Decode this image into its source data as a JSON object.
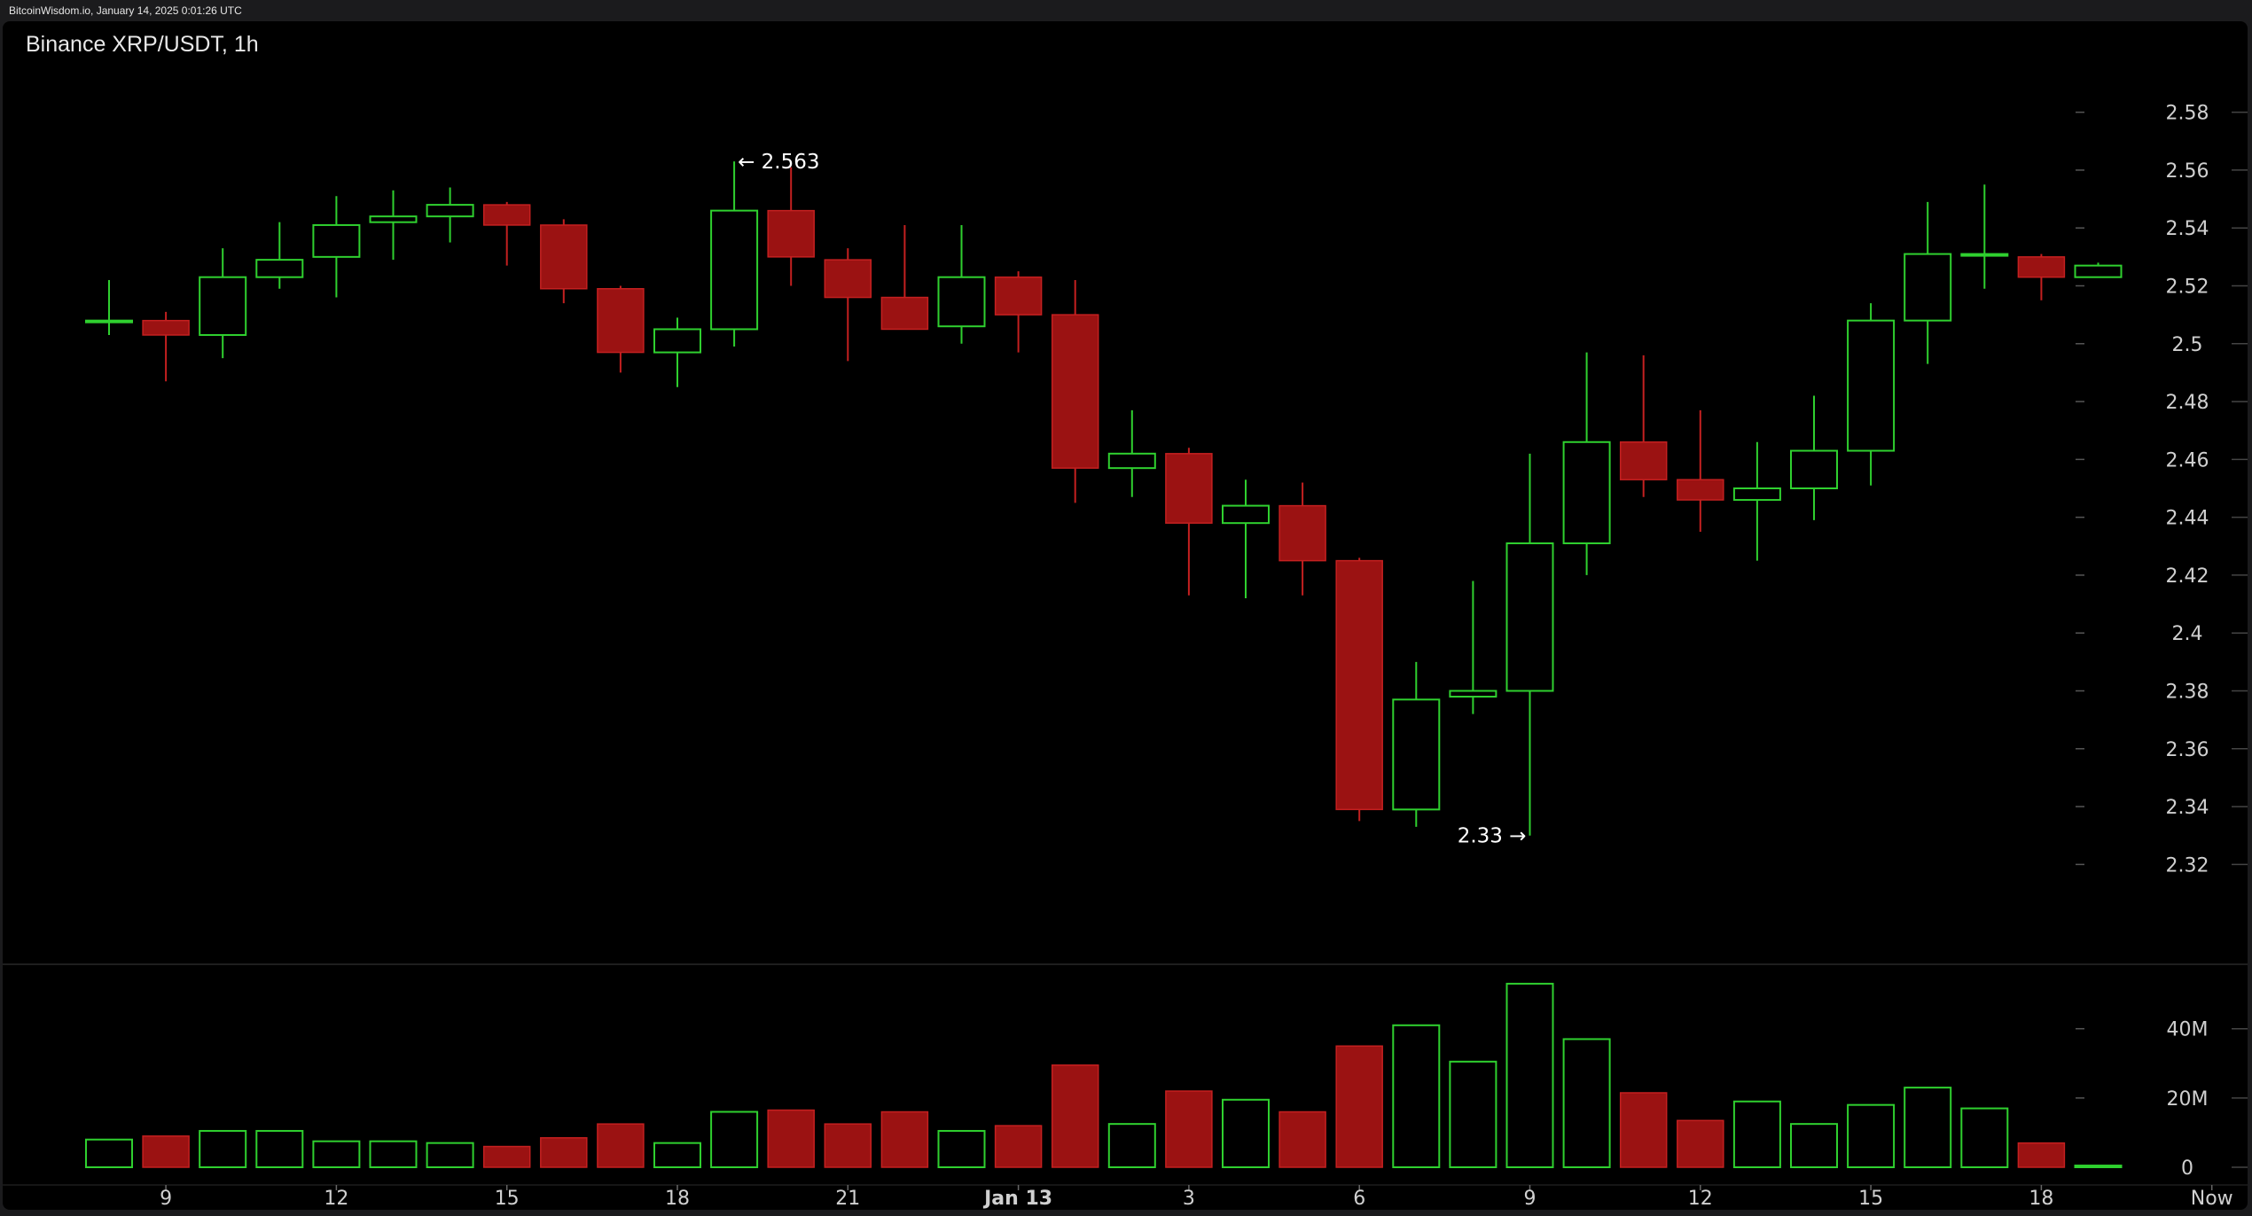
{
  "watermark": "BitcoinWisdom.io, January 14, 2025 0:01:26 UTC",
  "chart_title": "Binance XRP/USDT, 1h",
  "chart_data": [
    {
      "type": "candlestick",
      "title": "Binance XRP/USDT, 1h",
      "exchange": "Binance",
      "pair": "XRP/USDT",
      "interval": "1h",
      "ylim": [
        2.31,
        2.59
      ],
      "y_ticks": [
        2.58,
        2.56,
        2.54,
        2.52,
        2.5,
        2.48,
        2.46,
        2.44,
        2.42,
        2.4,
        2.38,
        2.36,
        2.34,
        2.32
      ],
      "y_tick_labels": [
        "2.58",
        "2.56",
        "2.54",
        "2.52",
        "2.5",
        "2.48",
        "2.46",
        "2.44",
        "2.42",
        "2.4",
        "2.38",
        "2.36",
        "2.34",
        "2.32"
      ],
      "x_ticks": [
        {
          "index": 1,
          "label": "9"
        },
        {
          "index": 4,
          "label": "12"
        },
        {
          "index": 7,
          "label": "15"
        },
        {
          "index": 10,
          "label": "18"
        },
        {
          "index": 13,
          "label": "21"
        },
        {
          "index": 16,
          "label": "Jan 13"
        },
        {
          "index": 19,
          "label": "3"
        },
        {
          "index": 22,
          "label": "6"
        },
        {
          "index": 25,
          "label": "9"
        },
        {
          "index": 28,
          "label": "12"
        },
        {
          "index": 31,
          "label": "15"
        },
        {
          "index": 34,
          "label": "18"
        },
        {
          "index": 37,
          "label": "Now"
        }
      ],
      "candles": [
        {
          "o": 2.508,
          "h": 2.522,
          "l": 2.503,
          "c": 2.508
        },
        {
          "o": 2.508,
          "h": 2.511,
          "l": 2.487,
          "c": 2.503
        },
        {
          "o": 2.503,
          "h": 2.533,
          "l": 2.495,
          "c": 2.523
        },
        {
          "o": 2.523,
          "h": 2.542,
          "l": 2.519,
          "c": 2.529
        },
        {
          "o": 2.53,
          "h": 2.551,
          "l": 2.516,
          "c": 2.541
        },
        {
          "o": 2.542,
          "h": 2.553,
          "l": 2.529,
          "c": 2.544
        },
        {
          "o": 2.544,
          "h": 2.554,
          "l": 2.535,
          "c": 2.548
        },
        {
          "o": 2.548,
          "h": 2.549,
          "l": 2.527,
          "c": 2.541
        },
        {
          "o": 2.541,
          "h": 2.543,
          "l": 2.514,
          "c": 2.519
        },
        {
          "o": 2.519,
          "h": 2.52,
          "l": 2.49,
          "c": 2.497
        },
        {
          "o": 2.497,
          "h": 2.509,
          "l": 2.485,
          "c": 2.505
        },
        {
          "o": 2.505,
          "h": 2.563,
          "l": 2.499,
          "c": 2.546
        },
        {
          "o": 2.546,
          "h": 2.561,
          "l": 2.52,
          "c": 2.53
        },
        {
          "o": 2.529,
          "h": 2.533,
          "l": 2.494,
          "c": 2.516
        },
        {
          "o": 2.516,
          "h": 2.541,
          "l": 2.506,
          "c": 2.505
        },
        {
          "o": 2.506,
          "h": 2.541,
          "l": 2.5,
          "c": 2.523
        },
        {
          "o": 2.523,
          "h": 2.525,
          "l": 2.497,
          "c": 2.51
        },
        {
          "o": 2.51,
          "h": 2.522,
          "l": 2.445,
          "c": 2.457
        },
        {
          "o": 2.457,
          "h": 2.477,
          "l": 2.447,
          "c": 2.462
        },
        {
          "o": 2.462,
          "h": 2.464,
          "l": 2.413,
          "c": 2.438
        },
        {
          "o": 2.438,
          "h": 2.453,
          "l": 2.412,
          "c": 2.444
        },
        {
          "o": 2.444,
          "h": 2.452,
          "l": 2.413,
          "c": 2.425
        },
        {
          "o": 2.425,
          "h": 2.426,
          "l": 2.335,
          "c": 2.339
        },
        {
          "o": 2.339,
          "h": 2.39,
          "l": 2.333,
          "c": 2.377
        },
        {
          "o": 2.378,
          "h": 2.418,
          "l": 2.372,
          "c": 2.38
        },
        {
          "o": 2.38,
          "h": 2.462,
          "l": 2.33,
          "c": 2.431
        },
        {
          "o": 2.431,
          "h": 2.497,
          "l": 2.42,
          "c": 2.466
        },
        {
          "o": 2.466,
          "h": 2.496,
          "l": 2.447,
          "c": 2.453
        },
        {
          "o": 2.453,
          "h": 2.477,
          "l": 2.435,
          "c": 2.446
        },
        {
          "o": 2.446,
          "h": 2.466,
          "l": 2.425,
          "c": 2.45
        },
        {
          "o": 2.45,
          "h": 2.482,
          "l": 2.439,
          "c": 2.463
        },
        {
          "o": 2.463,
          "h": 2.514,
          "l": 2.451,
          "c": 2.508
        },
        {
          "o": 2.508,
          "h": 2.549,
          "l": 2.493,
          "c": 2.531
        },
        {
          "o": 2.531,
          "h": 2.555,
          "l": 2.519,
          "c": 2.531
        },
        {
          "o": 2.53,
          "h": 2.531,
          "l": 2.515,
          "c": 2.523
        },
        {
          "o": 2.523,
          "h": 2.528,
          "l": 2.523,
          "c": 2.527
        }
      ],
      "annotations": [
        {
          "index": 11,
          "price": 2.563,
          "label": "← 2.563",
          "side": "right"
        },
        {
          "index": 25,
          "price": 2.33,
          "label": "2.33 →",
          "side": "left"
        }
      ],
      "volume": {
        "ylim": [
          0,
          54
        ],
        "unit": "M",
        "y_ticks": [
          0,
          20,
          40
        ],
        "y_tick_labels": [
          "0",
          "20M",
          "40M"
        ],
        "values": [
          8,
          9,
          10.5,
          10.5,
          7.5,
          7.5,
          7,
          6,
          8.5,
          12.5,
          7,
          16,
          16.5,
          12.5,
          16,
          10.5,
          12,
          29.5,
          12.5,
          22,
          19.5,
          16,
          35,
          41,
          30.5,
          53,
          37,
          21.5,
          13.5,
          19,
          12.5,
          18,
          23,
          17,
          7,
          0.5
        ]
      },
      "colors": {
        "up": "#2fd02f",
        "down": "#9b1212",
        "down_border": "#c42020",
        "background": "#000000",
        "axis_text": "#cfcfcf"
      }
    }
  ]
}
